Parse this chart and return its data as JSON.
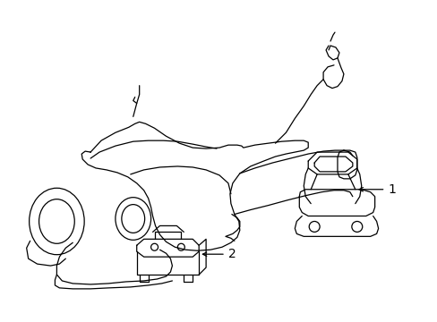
{
  "background_color": "#ffffff",
  "line_color": "#000000",
  "line_width": 0.9,
  "fig_width": 4.89,
  "fig_height": 3.6,
  "dpi": 100,
  "label1": "1",
  "label2": "2"
}
